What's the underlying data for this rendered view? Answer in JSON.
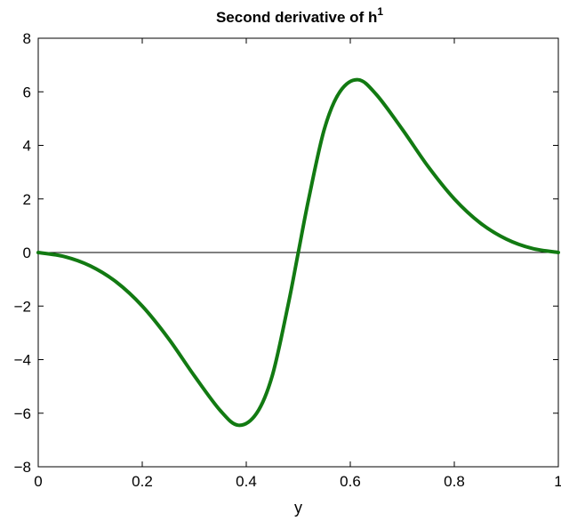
{
  "chart_data": {
    "type": "line",
    "title": "Second derivative of h",
    "title_superscript": "1",
    "xlabel": "y",
    "ylabel": "",
    "xlim": [
      0,
      1
    ],
    "ylim": [
      -8,
      8
    ],
    "xticks": [
      0,
      0.2,
      0.4,
      0.6,
      0.8,
      1
    ],
    "xtick_labels": [
      "0",
      "0.2",
      "0.4",
      "0.6",
      "0.8",
      "1"
    ],
    "yticks": [
      -8,
      -6,
      -4,
      -2,
      0,
      2,
      4,
      6,
      8
    ],
    "ytick_labels": [
      "−8",
      "−6",
      "−4",
      "−2",
      "0",
      "2",
      "4",
      "6",
      "8"
    ],
    "grid": false,
    "reference_line_y": 0,
    "series": [
      {
        "color": "#127a12",
        "x": [
          0,
          0.05,
          0.1,
          0.15,
          0.2,
          0.25,
          0.3,
          0.35,
          0.385,
          0.42,
          0.45,
          0.48,
          0.5,
          0.52,
          0.55,
          0.58,
          0.615,
          0.65,
          0.7,
          0.75,
          0.8,
          0.85,
          0.9,
          0.95,
          1
        ],
        "y": [
          0,
          -0.15,
          -0.5,
          -1.1,
          -2.0,
          -3.2,
          -4.6,
          -5.9,
          -6.45,
          -6.0,
          -4.6,
          -2.0,
          0,
          2.0,
          4.6,
          6.0,
          6.45,
          5.9,
          4.6,
          3.2,
          2.0,
          1.1,
          0.5,
          0.15,
          0
        ]
      }
    ]
  }
}
